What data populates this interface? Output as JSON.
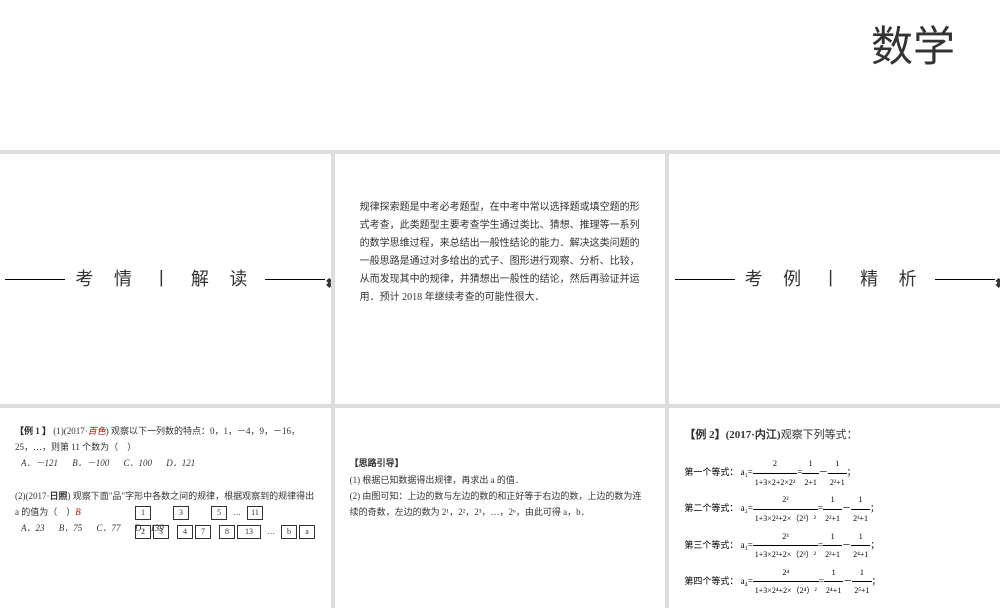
{
  "header": {
    "subject": "数学"
  },
  "sections": {
    "analysis_title": "考 情 丨 解 读",
    "examples_title": "考 例 丨 精 析"
  },
  "intro_text": "规律探索题是中考必考题型，在中考中常以选择题或填空题的形式考查，此类题型主要考查学生通过类比、猜想、推理等一系列的数学思维过程，来总结出一般性结论的能力．解决这类问题的一般思路是通过对多给出的式子、图形进行观察、分析、比较，从而发现其中的规律，并猜想出一般性的结论，然后再验证并运用．预计 2018 年继续考查的可能性很大．",
  "ex1": {
    "label": "【例 1 】",
    "q1_prefix": "(1)(2017·",
    "q1_source": "百色",
    "q1_body": ") 观察以下一列数的特点：0，1，－4，9，－16，25，…，则第 11 个数为（　）",
    "q1_opts": {
      "a": "A．－121",
      "b": "B．－100",
      "c": "C．100",
      "d": "D．121"
    },
    "q2_prefix": "(2)(2017·",
    "q2_source": "日照",
    "q2_body": ") 观察下面\"品\"字形中各数之间的规律，根据观察到的规律得出 a 的值为（　）",
    "q2_ans": "B",
    "q2_opts": {
      "a": "A．23",
      "b": "B．75",
      "c": "C．77",
      "d": "D．139"
    },
    "boxes_r1": [
      "1",
      "3",
      "5",
      "11"
    ],
    "boxes_r2a": [
      "2",
      "3"
    ],
    "boxes_r2b": [
      "4",
      "7"
    ],
    "boxes_r2c": [
      "8",
      "13"
    ],
    "boxes_r2d": [
      "b",
      "a"
    ]
  },
  "guide": {
    "title": "【思路引导】",
    "p1": "(1) 根据已知数据得出规律，再求出 a 的值．",
    "p2": "(2) 由图可知：上边的数与左边的数的和正好等于右边的数，上边的数为连续的奇数，左边的数为 2¹，2²，2³，…，2ⁿ，由此可得 a，b．"
  },
  "ex2": {
    "label": "【例 2】",
    "src": "(2017·内江)",
    "tail": "观察下列等式：",
    "rows": [
      {
        "lbl": "第一个等式：",
        "a": "a₁=",
        "num": "2",
        "den": "1+3×2+2×2²",
        "r1n": "1",
        "r1d": "2+1",
        "r2n": "1",
        "r2d": "2²+1"
      },
      {
        "lbl": "第二个等式：",
        "a": "a₂=",
        "num": "2²",
        "den": "1+3×2²+2×（2²）²",
        "r1n": "1",
        "r1d": "2²+1",
        "r2n": "1",
        "r2d": "2³+1"
      },
      {
        "lbl": "第三个等式：",
        "a": "a₃=",
        "num": "2³",
        "den": "1+3×2³+2×（2³）²",
        "r1n": "1",
        "r1d": "2³+1",
        "r2n": "1",
        "r2d": "2⁴+1"
      },
      {
        "lbl": "第四个等式：",
        "a": "a₄=",
        "num": "2⁴",
        "den": "1+3×2⁴+2×（2⁴）²",
        "r1n": "1",
        "r1d": "2⁴+1",
        "r2n": "1",
        "r2d": "2⁵+1"
      }
    ]
  },
  "style": {
    "bg": "#ffffff",
    "text": "#333333",
    "accent": "#cc0000",
    "font_body": 10,
    "font_title": 18,
    "font_subject": 42
  }
}
